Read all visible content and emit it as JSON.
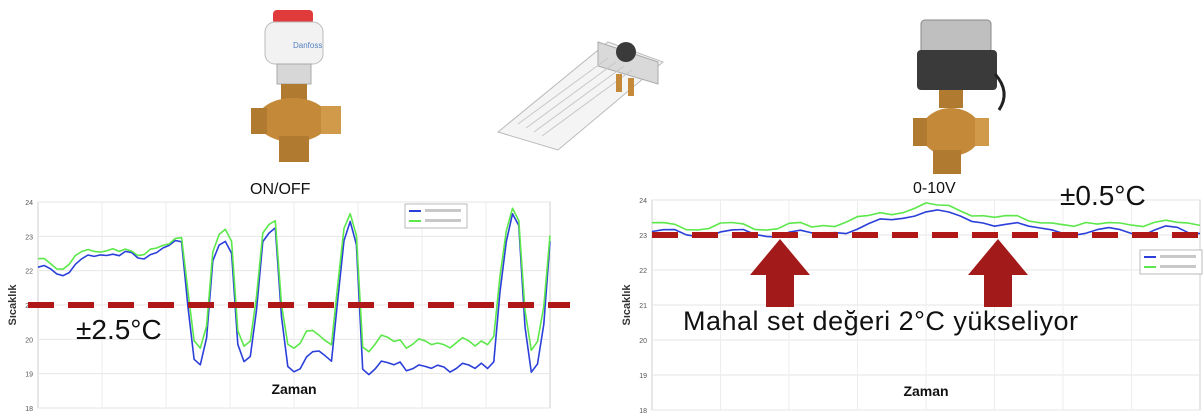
{
  "captions": {
    "left": "ON/OFF",
    "middle": "0-10V",
    "left_tolerance": "±2.5°C",
    "right_tolerance": "±0.5°C",
    "right_note": "Mahal set değeri 2°C yükseliyor"
  },
  "colors": {
    "series_a": "#2b3fd9",
    "series_b": "#5ce84a",
    "setpoint": "#b01818",
    "arrow": "#a31a1a",
    "valve_brass": "#c48a3a",
    "actuator_body": "#3a3a3a"
  },
  "chart_data": [
    {
      "type": "line",
      "xlabel": "Zaman",
      "ylabel": "Sıcaklık",
      "ylim": [
        18,
        24
      ],
      "yticks": [
        18,
        19,
        20,
        21,
        22,
        23,
        24
      ],
      "grid": true,
      "legend_position": "top-right",
      "setpoint": 21,
      "series": [
        {
          "values": [
            22.1,
            22.1,
            22.0,
            21.9,
            21.9,
            22.0,
            22.2,
            22.3,
            22.4,
            22.4,
            22.5,
            22.5,
            22.5,
            22.4,
            22.5,
            22.5,
            22.4,
            22.4,
            22.5,
            22.5,
            22.6,
            22.7,
            22.9,
            22.9,
            21.0,
            19.4,
            19.2,
            20.0,
            22.3,
            22.8,
            22.9,
            22.5,
            19.8,
            19.3,
            19.5,
            20.9,
            22.9,
            23.1,
            23.2,
            20.6,
            19.2,
            19.1,
            19.2,
            19.5,
            19.6,
            19.6,
            19.5,
            19.4,
            21.2,
            22.9,
            23.4,
            22.7,
            19.1,
            19.0,
            19.2,
            19.4,
            19.3,
            19.2,
            19.3,
            19.1,
            19.2,
            19.3,
            19.2,
            19.1,
            19.2,
            19.2,
            19.1,
            19.2,
            19.3,
            19.2,
            19.1,
            19.3,
            19.2,
            19.4,
            21.4,
            22.8,
            23.6,
            23.3,
            20.4,
            19.1,
            19.3,
            20.4,
            22.8
          ]
        },
        {
          "values": [
            22.3,
            22.3,
            22.2,
            22.1,
            22.1,
            22.2,
            22.4,
            22.5,
            22.6,
            22.6,
            22.6,
            22.6,
            22.6,
            22.5,
            22.6,
            22.6,
            22.5,
            22.5,
            22.6,
            22.6,
            22.7,
            22.8,
            23.0,
            23.0,
            21.4,
            19.9,
            19.7,
            20.4,
            22.6,
            23.1,
            23.2,
            22.8,
            20.2,
            19.8,
            20.0,
            21.3,
            23.1,
            23.3,
            23.4,
            21.0,
            19.9,
            19.8,
            19.9,
            20.2,
            20.2,
            20.1,
            20.0,
            19.9,
            21.6,
            23.2,
            23.6,
            23.0,
            19.8,
            19.7,
            19.9,
            20.1,
            20.0,
            19.9,
            20.0,
            19.8,
            19.9,
            20.0,
            19.9,
            19.8,
            19.9,
            19.9,
            19.8,
            19.9,
            20.0,
            19.9,
            19.8,
            20.0,
            19.9,
            20.1,
            21.8,
            23.1,
            23.8,
            23.5,
            20.9,
            19.7,
            19.9,
            20.9,
            23.0
          ]
        }
      ]
    },
    {
      "type": "line",
      "xlabel": "Zaman",
      "ylabel": "Sıcaklık",
      "ylim": [
        18,
        24
      ],
      "yticks": [
        18,
        19,
        20,
        21,
        22,
        23,
        24
      ],
      "grid": true,
      "legend_position": "right",
      "setpoint": 23,
      "series": [
        {
          "values": [
            23.1,
            23.1,
            23.1,
            23.0,
            23.0,
            23.0,
            23.1,
            23.1,
            23.1,
            23.0,
            23.0,
            23.0,
            23.1,
            23.1,
            23.0,
            23.0,
            23.1,
            23.1,
            23.2,
            23.3,
            23.4,
            23.4,
            23.5,
            23.6,
            23.7,
            23.7,
            23.6,
            23.5,
            23.4,
            23.4,
            23.3,
            23.3,
            23.3,
            23.2,
            23.2,
            23.2,
            23.1,
            23.0,
            23.0,
            23.1,
            23.2,
            23.2,
            23.1,
            23.0,
            23.1,
            23.2,
            23.2,
            23.1,
            23.1
          ]
        },
        {
          "values": [
            23.3,
            23.3,
            23.3,
            23.2,
            23.2,
            23.2,
            23.3,
            23.3,
            23.3,
            23.2,
            23.2,
            23.2,
            23.3,
            23.3,
            23.2,
            23.3,
            23.3,
            23.4,
            23.5,
            23.5,
            23.6,
            23.6,
            23.7,
            23.8,
            23.9,
            23.8,
            23.8,
            23.7,
            23.6,
            23.6,
            23.5,
            23.5,
            23.5,
            23.4,
            23.4,
            23.4,
            23.3,
            23.2,
            23.3,
            23.3,
            23.4,
            23.4,
            23.3,
            23.2,
            23.3,
            23.4,
            23.4,
            23.4,
            23.3
          ]
        }
      ]
    }
  ]
}
